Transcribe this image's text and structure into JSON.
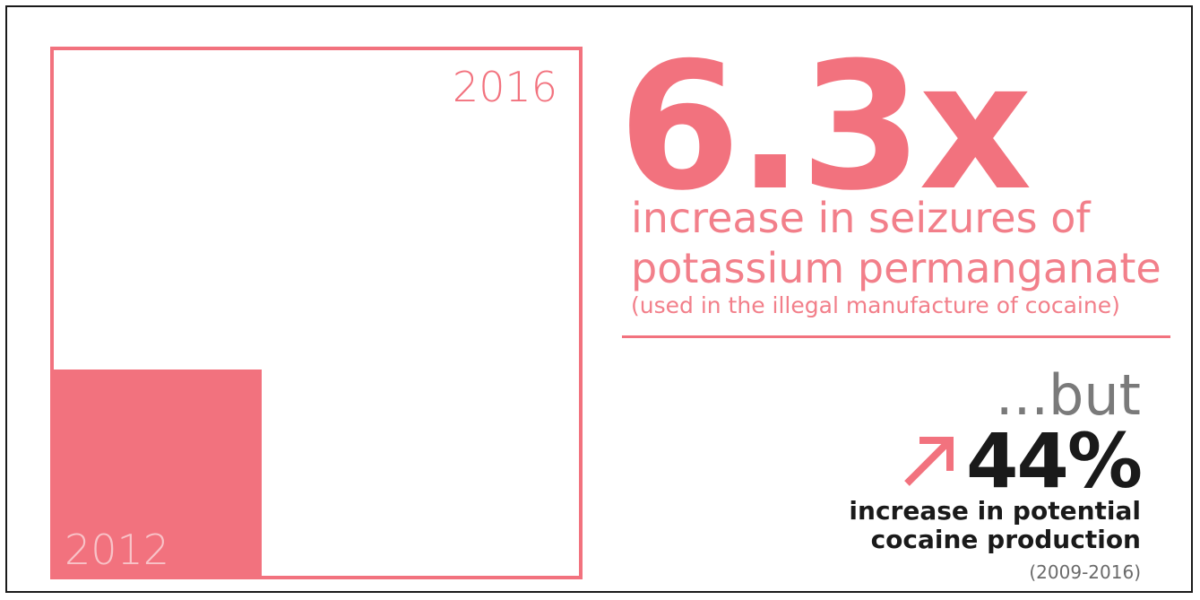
{
  "colors": {
    "accent": "#f2727e",
    "accent_light": "#f8c3c8",
    "dark_text": "#1a1a1a",
    "grey_text": "#7a7a7a",
    "frame_border": "#1a1a1a"
  },
  "comparison": {
    "outer_label": "2016",
    "inner_label": "2012"
  },
  "headline": {
    "value": "6.3x",
    "line1": "increase in seizures of",
    "line2": "potassium permanganate",
    "note": "(used in the illegal manufacture of cocaine)"
  },
  "secondary": {
    "connector": "...but",
    "arrow_icon": "arrow-up-right-icon",
    "value": "44%",
    "line1": "increase in potential",
    "line2": "cocaine production",
    "years": "(2009-2016)"
  }
}
